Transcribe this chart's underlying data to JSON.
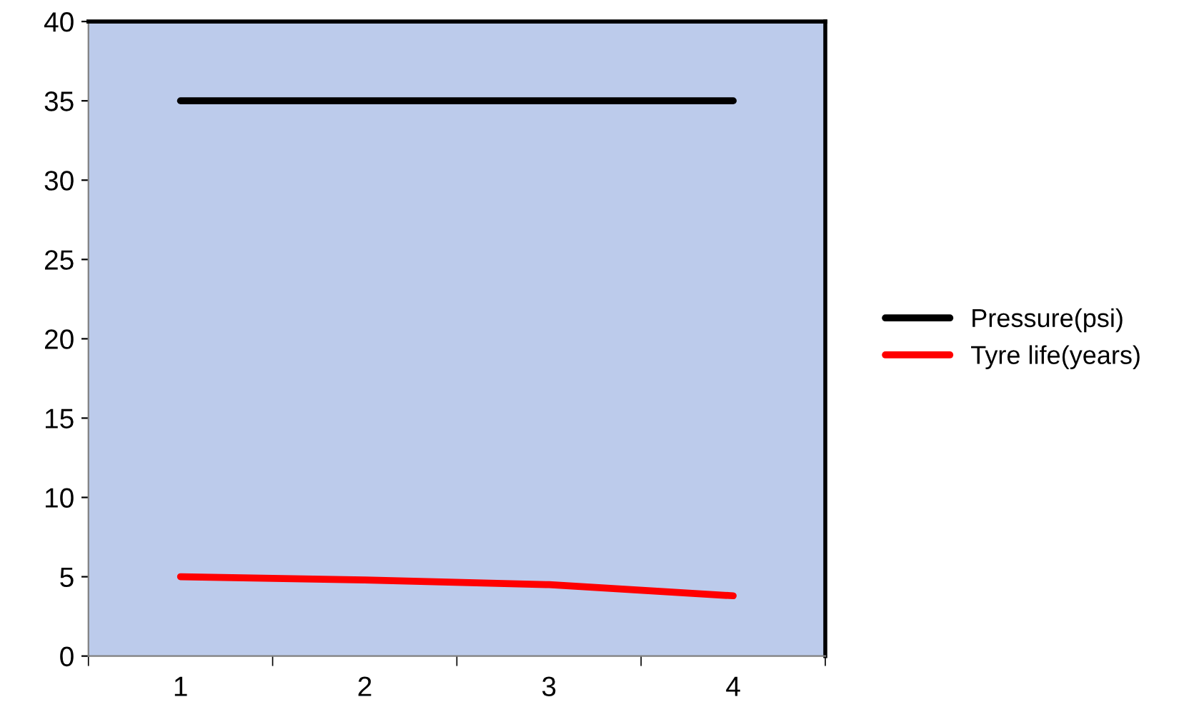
{
  "chart_data": {
    "type": "line",
    "categories": [
      "1",
      "2",
      "3",
      "4"
    ],
    "series": [
      {
        "name": "Pressure(psi)",
        "color": "#000000",
        "values": [
          35,
          35,
          35,
          35
        ]
      },
      {
        "name": "Tyre life(years)",
        "color": "#ff0000",
        "values": [
          5,
          4.8,
          4.5,
          3.8
        ]
      }
    ],
    "ylim": [
      0,
      40
    ],
    "yticks": [
      0,
      5,
      10,
      15,
      20,
      25,
      30,
      35,
      40
    ],
    "grid": false,
    "legend": "right",
    "marker": "none",
    "line_style": "solid"
  }
}
